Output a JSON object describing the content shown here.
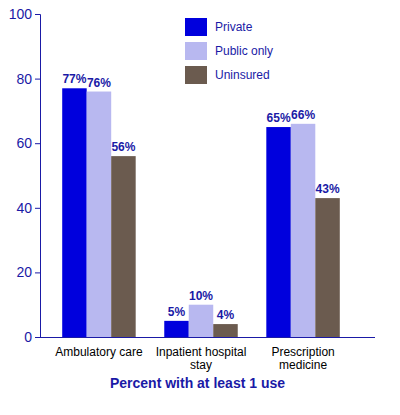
{
  "chart_data": {
    "type": "bar",
    "categories": [
      "Ambulatory care",
      "Inpatient hospital stay",
      "Prescription medicine"
    ],
    "series": [
      {
        "name": "Private",
        "color": "#0000dd",
        "values": [
          77,
          5,
          65
        ],
        "value_labels": [
          "77%",
          "5%",
          "65%"
        ]
      },
      {
        "name": "Public only",
        "color": "#b8b8f0",
        "values": [
          76,
          10,
          66
        ],
        "value_labels": [
          "76%",
          "10%",
          "66%"
        ]
      },
      {
        "name": "Uninsured",
        "color": "#6b5b4f",
        "values": [
          56,
          4,
          43
        ],
        "value_labels": [
          "56%",
          "4%",
          "43%"
        ]
      }
    ],
    "x_label": "Percent with at least 1 use",
    "ylim": [
      0,
      100
    ],
    "yticks": [
      0,
      20,
      40,
      60,
      80,
      100
    ],
    "grid": false,
    "legend": "top",
    "data_labels": true
  }
}
